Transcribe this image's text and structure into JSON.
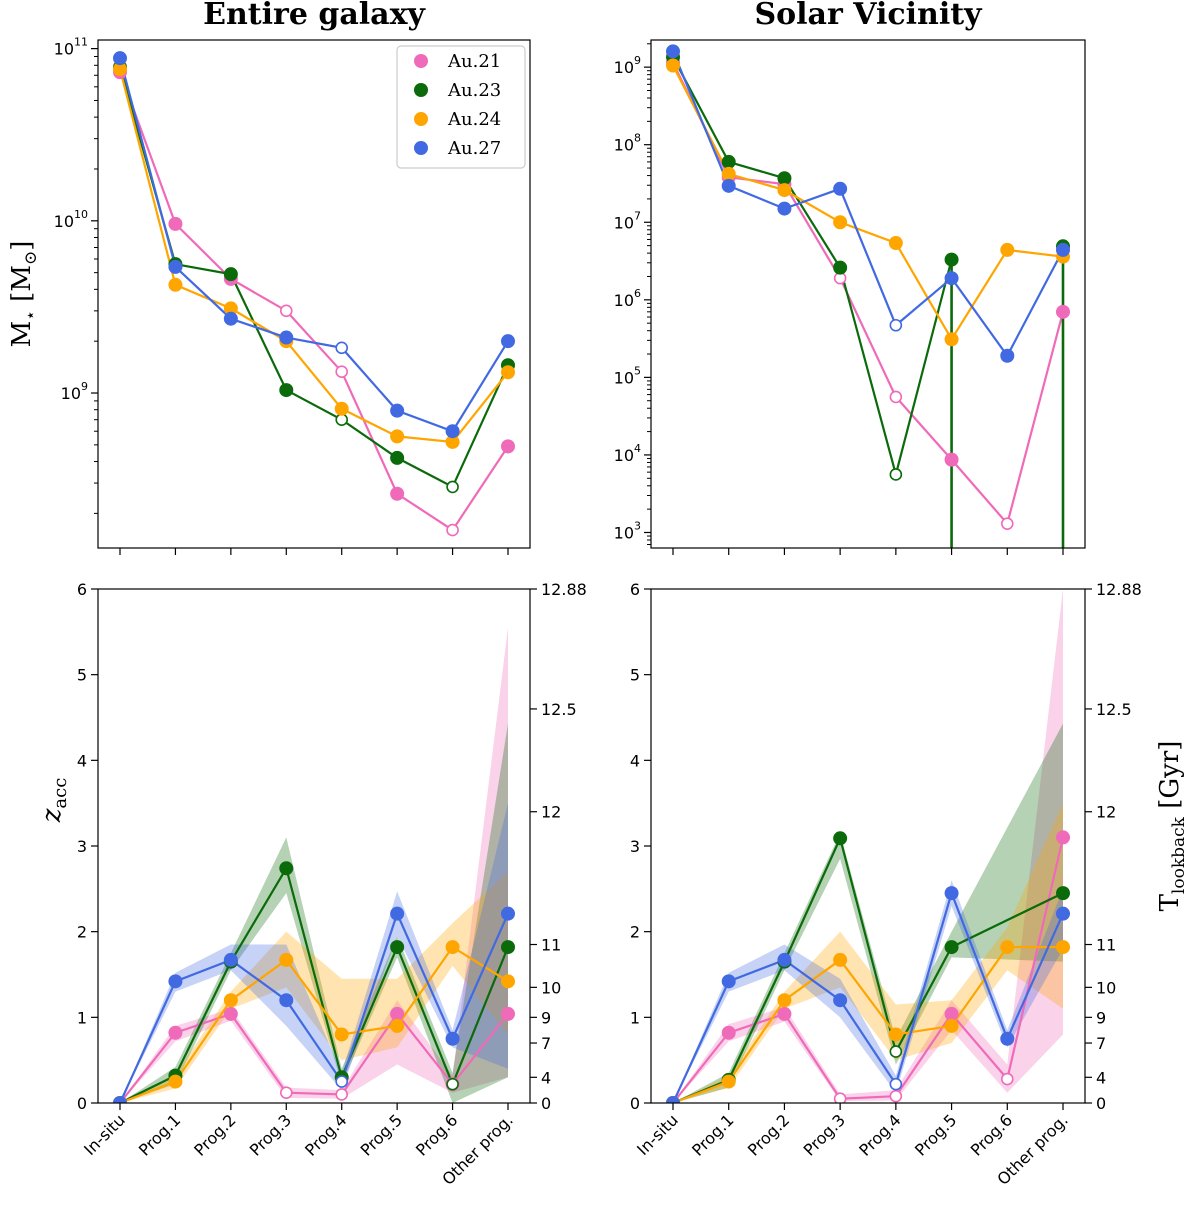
{
  "chart_data": {
    "type": "line",
    "categories": [
      "In-situ",
      "Prog.1",
      "Prog.2",
      "Prog.3",
      "Prog.4",
      "Prog.5",
      "Prog.6",
      "Other prog."
    ],
    "panel_titles": [
      "Entire galaxy",
      "Solar Vicinity"
    ],
    "top_ylabel_main": "M",
    "top_ylabel_sub": "⋆",
    "top_ylabel_unit": "[M",
    "top_ylabel_unit_sub": "⊙",
    "top_ylabel_close": "]",
    "bottom_ylabel_main": "z",
    "bottom_ylabel_sub": "acc",
    "right_ylabel_main": "T",
    "right_ylabel_sub": "lookback",
    "right_ylabel_unit": "[Gyr]",
    "legend": [
      "Au.21",
      "Au.23",
      "Au.24",
      "Au.27"
    ],
    "colors": {
      "Au.21": "#f06aba",
      "Au.23": "#0b6b0b",
      "Au.24": "#ffa500",
      "Au.27": "#4169e1"
    },
    "left_ticks": [
      {
        "label": "10",
        "exp": "11"
      },
      {
        "label": "10",
        "exp": "10"
      },
      {
        "label": "10",
        "exp": "9"
      }
    ],
    "right_top_ticks": [
      {
        "label": "10",
        "exp": "9"
      },
      {
        "label": "10",
        "exp": "8"
      },
      {
        "label": "10",
        "exp": "7"
      },
      {
        "label": "10",
        "exp": "6"
      },
      {
        "label": "10",
        "exp": "5"
      },
      {
        "label": "10",
        "exp": "4"
      },
      {
        "label": "10",
        "exp": "3"
      }
    ],
    "z_ticks": [
      "0",
      "1",
      "2",
      "3",
      "4",
      "5",
      "6"
    ],
    "z_ylim": [
      0,
      6
    ],
    "lookback_ticks": [
      {
        "z": 0,
        "label": "0"
      },
      {
        "z": 0.3,
        "label": "4"
      },
      {
        "z": 0.7,
        "label": "7"
      },
      {
        "z": 1.0,
        "label": "9"
      },
      {
        "z": 1.35,
        "label": "10"
      },
      {
        "z": 1.85,
        "label": "11"
      },
      {
        "z": 3.4,
        "label": "12"
      },
      {
        "z": 4.6,
        "label": "12.5"
      },
      {
        "z": 6.0,
        "label": "12.88"
      }
    ],
    "panels": [
      {
        "title": "Entire galaxy",
        "mass_ylim_log10": [
          8.1,
          11.05
        ],
        "mass": [
          {
            "name": "Au.21",
            "values": [
              73000000000.0,
              9600000000.0,
              4600000000.0,
              3000000000.0,
              1330000000.0,
              260000000.0,
              160000000.0,
              490000000.0
            ],
            "open": [
              false,
              false,
              false,
              true,
              true,
              false,
              true,
              false
            ]
          },
          {
            "name": "Au.23",
            "values": [
              78000000000.0,
              5600000000.0,
              4900000000.0,
              1040000000.0,
              700000000.0,
              420000000.0,
              285000000.0,
              1450000000.0
            ],
            "open": [
              false,
              false,
              false,
              false,
              true,
              false,
              true,
              false
            ]
          },
          {
            "name": "Au.24",
            "values": [
              76000000000.0,
              4250000000.0,
              3100000000.0,
              2000000000.0,
              810000000.0,
              560000000.0,
              520000000.0,
              1320000000.0
            ],
            "open": [
              false,
              false,
              false,
              false,
              false,
              false,
              false,
              false
            ]
          },
          {
            "name": "Au.27",
            "values": [
              88000000000.0,
              5400000000.0,
              2700000000.0,
              2100000000.0,
              1830000000.0,
              790000000.0,
              600000000.0,
              2000000000.0
            ],
            "open": [
              false,
              false,
              false,
              false,
              true,
              false,
              false,
              false
            ]
          }
        ],
        "zacc": [
          {
            "name": "Au.21",
            "values": [
              0.0,
              0.82,
              1.04,
              0.12,
              0.1,
              1.04,
              0.22,
              1.04
            ],
            "lo": [
              0.0,
              0.72,
              0.96,
              0.06,
              0.05,
              0.45,
              0.12,
              0.3
            ],
            "hi": [
              0.0,
              0.9,
              1.1,
              0.18,
              0.15,
              1.2,
              0.32,
              5.55
            ],
            "open": [
              false,
              false,
              false,
              true,
              true,
              false,
              false,
              false
            ]
          },
          {
            "name": "Au.23",
            "values": [
              0.0,
              0.32,
              1.65,
              2.74,
              0.3,
              1.82,
              0.22,
              1.82
            ],
            "lo": [
              0.0,
              0.22,
              1.55,
              2.45,
              0.22,
              1.7,
              0.0,
              0.3
            ],
            "hi": [
              0.0,
              0.42,
              1.75,
              3.1,
              0.4,
              1.95,
              0.35,
              4.43
            ],
            "open": [
              false,
              false,
              false,
              false,
              false,
              false,
              true,
              false
            ]
          },
          {
            "name": "Au.24",
            "values": [
              0.0,
              0.25,
              1.2,
              1.67,
              0.8,
              0.9,
              1.82,
              1.42
            ],
            "lo": [
              0.0,
              0.17,
              1.1,
              1.35,
              0.5,
              0.65,
              1.6,
              0.8
            ],
            "hi": [
              0.0,
              0.33,
              1.3,
              2.0,
              1.45,
              1.45,
              2.1,
              2.7
            ],
            "open": [
              false,
              false,
              false,
              false,
              false,
              false,
              false,
              false
            ]
          },
          {
            "name": "Au.27",
            "values": [
              0.0,
              1.42,
              1.67,
              1.2,
              0.25,
              2.21,
              0.75,
              2.21
            ],
            "lo": [
              0.0,
              1.3,
              1.55,
              0.9,
              0.15,
              1.95,
              0.65,
              0.4
            ],
            "hi": [
              0.0,
              1.52,
              1.85,
              1.85,
              0.35,
              2.47,
              0.85,
              3.5
            ],
            "open": [
              false,
              false,
              false,
              false,
              true,
              false,
              false,
              false
            ]
          }
        ]
      },
      {
        "title": "Solar Vicinity",
        "mass_ylim_log10": [
          2.8,
          9.35
        ],
        "mass": [
          {
            "name": "Au.21",
            "values": [
              1150000000.0,
              38000000.0,
              31000000.0,
              1900000.0,
              56000.0,
              8700.0,
              1300.0,
              700000.0
            ],
            "open": [
              false,
              false,
              false,
              true,
              true,
              false,
              true,
              false
            ]
          },
          {
            "name": "Au.23",
            "values": [
              1350000000.0,
              60000000.0,
              37000000.0,
              2600000.0,
              5600.0,
              3300000.0,
              null,
              4900000.0
            ],
            "open": [
              false,
              false,
              false,
              false,
              true,
              false,
              false,
              false
            ],
            "drops": [
              5,
              7
            ]
          },
          {
            "name": "Au.24",
            "values": [
              1050000000.0,
              42000000.0,
              26000000.0,
              10000000.0,
              5400000.0,
              310000.0,
              4400000.0,
              3600000.0
            ],
            "open": [
              false,
              false,
              false,
              false,
              false,
              false,
              false,
              false
            ]
          },
          {
            "name": "Au.27",
            "values": [
              1600000000.0,
              29500000.0,
              15000000.0,
              27000000.0,
              470000.0,
              1900000.0,
              190000.0,
              4400000.0
            ],
            "open": [
              false,
              false,
              false,
              false,
              true,
              false,
              false,
              false
            ]
          }
        ],
        "zacc": [
          {
            "name": "Au.21",
            "values": [
              0.0,
              0.82,
              1.04,
              0.05,
              0.08,
              1.04,
              0.28,
              3.1
            ],
            "lo": [
              0.0,
              0.72,
              0.95,
              0.02,
              0.03,
              0.85,
              0.12,
              0.8
            ],
            "hi": [
              0.0,
              0.92,
              1.12,
              0.1,
              0.15,
              1.2,
              0.45,
              6.0
            ],
            "open": [
              false,
              false,
              false,
              true,
              true,
              false,
              true,
              false
            ]
          },
          {
            "name": "Au.23",
            "values": [
              0.0,
              0.27,
              1.65,
              3.09,
              0.6,
              1.82,
              null,
              2.45
            ],
            "lo": [
              0.0,
              0.18,
              1.55,
              2.85,
              0.45,
              1.7,
              null,
              1.65
            ],
            "hi": [
              0.0,
              0.35,
              1.75,
              3.15,
              0.75,
              2.0,
              null,
              4.43
            ],
            "open": [
              false,
              false,
              false,
              false,
              true,
              false,
              false,
              false
            ]
          },
          {
            "name": "Au.24",
            "values": [
              0.0,
              0.25,
              1.2,
              1.67,
              0.8,
              0.9,
              1.82,
              1.82
            ],
            "lo": [
              0.0,
              0.18,
              1.1,
              1.35,
              0.5,
              0.7,
              1.55,
              1.1
            ],
            "hi": [
              0.0,
              0.32,
              1.3,
              2.0,
              1.15,
              1.2,
              2.05,
              3.5
            ],
            "open": [
              false,
              false,
              false,
              false,
              false,
              false,
              false,
              false
            ]
          },
          {
            "name": "Au.27",
            "values": [
              0.0,
              1.42,
              1.67,
              1.2,
              0.22,
              2.45,
              0.75,
              2.21
            ],
            "lo": [
              0.0,
              1.3,
              1.55,
              1.0,
              0.12,
              2.3,
              0.65,
              1.8
            ],
            "hi": [
              0.0,
              1.52,
              1.85,
              1.45,
              0.32,
              2.6,
              0.85,
              2.5
            ],
            "open": [
              false,
              false,
              false,
              false,
              true,
              false,
              false,
              false
            ]
          }
        ]
      }
    ]
  }
}
